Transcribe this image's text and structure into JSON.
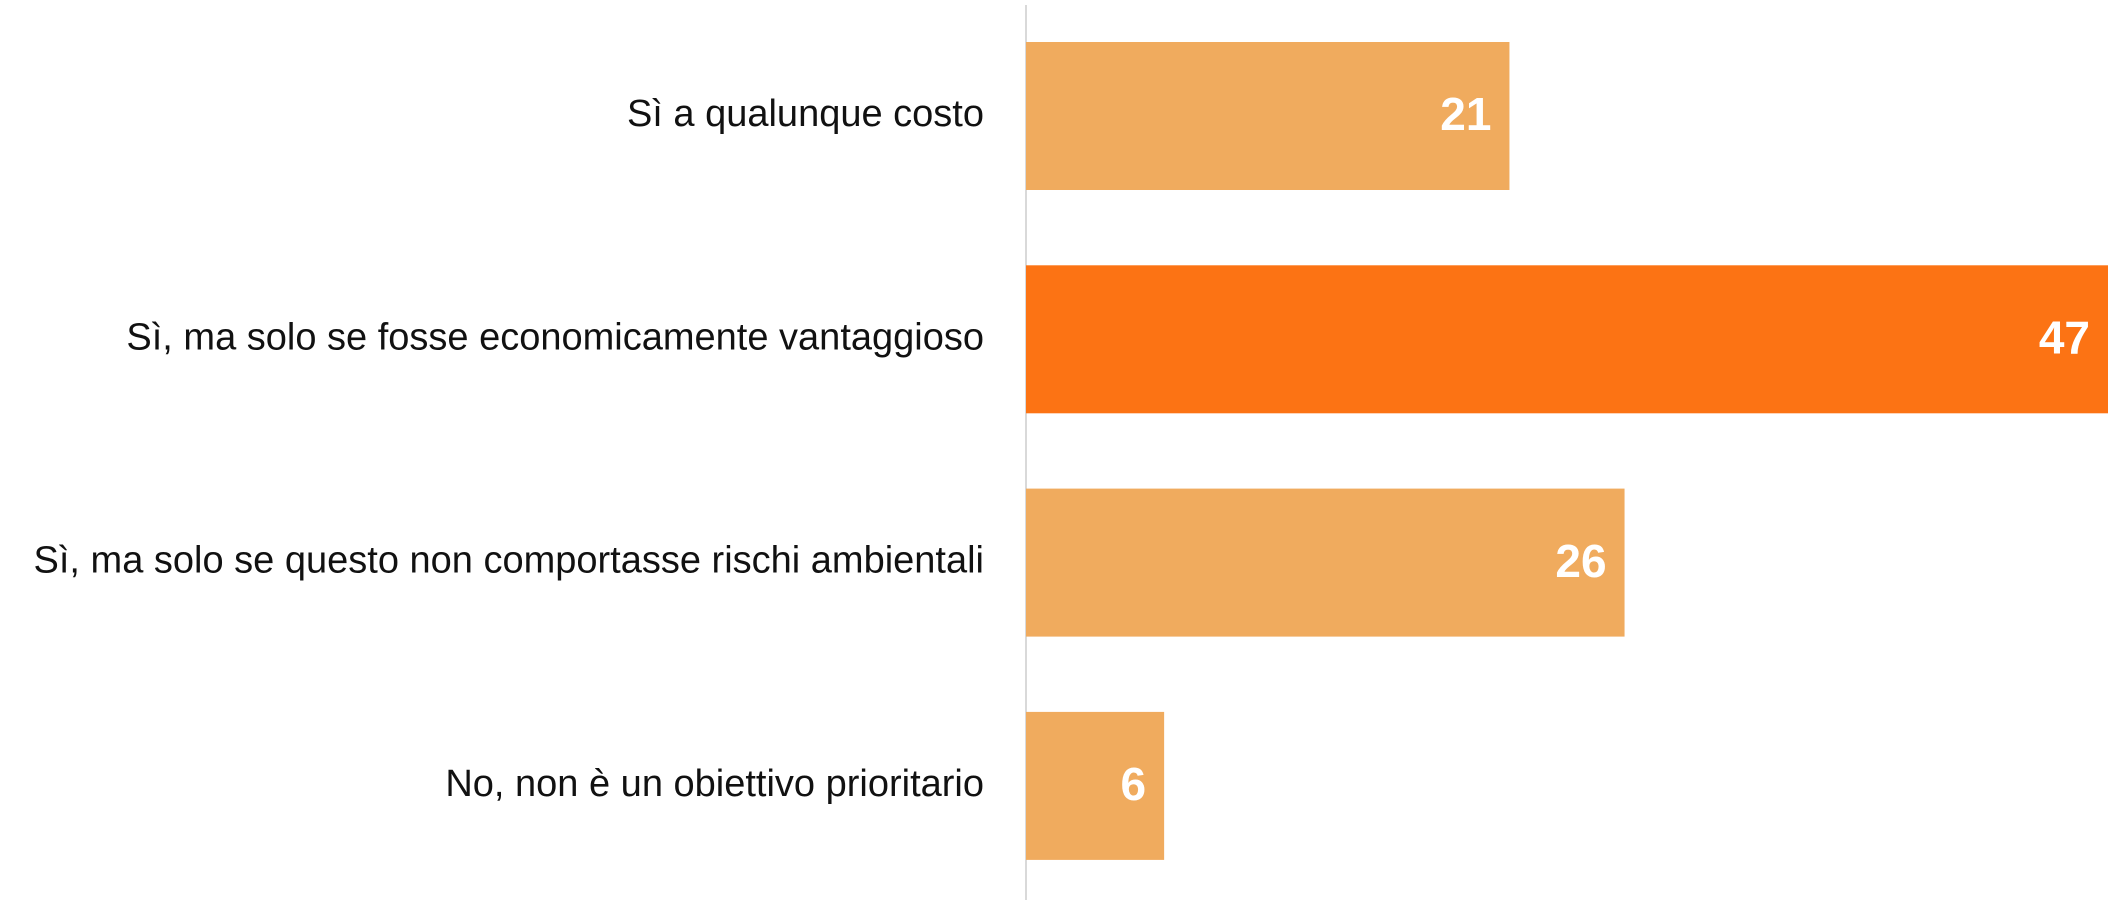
{
  "chart_data": {
    "type": "bar",
    "orientation": "horizontal",
    "categories": [
      "Sì a qualunque costo",
      "Sì, ma solo se fosse economicamente vantaggioso",
      "Sì, ma solo se questo non comportasse rischi ambientali",
      "No, non è un obiettivo prioritario"
    ],
    "values": [
      21,
      47,
      26,
      6
    ],
    "colors": [
      "#f0ab5e",
      "#fc7314",
      "#f0ab5e",
      "#f0ab5e"
    ],
    "xlim": [
      0,
      47
    ],
    "grid": false
  }
}
